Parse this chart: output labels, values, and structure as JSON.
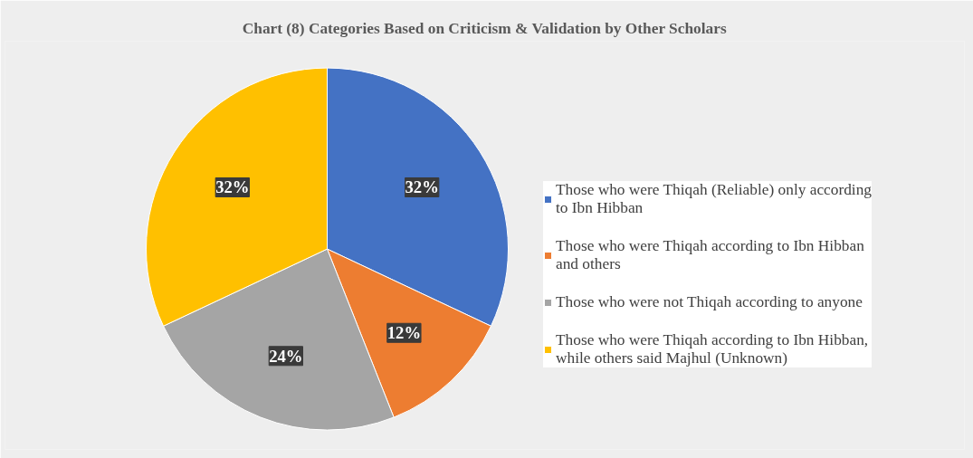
{
  "chart_data": {
    "type": "pie",
    "title": "Chart (8) Categories Based on Criticism & Validation by Other Scholars",
    "categories": [
      "Those who were Thiqah (Reliable) only according to Ibn Hibban",
      "Those who were Thiqah according to Ibn Hibban and others",
      "Those who were not Thiqah according to anyone",
      "Those who were Thiqah according to Ibn Hibban, while others said Majhul (Unknown)"
    ],
    "values": [
      32,
      12,
      24,
      32
    ],
    "colors": [
      "#4472c4",
      "#ed7d31",
      "#a5a5a5",
      "#ffc000"
    ],
    "value_labels": [
      "32%",
      "12%",
      "24%",
      "32%"
    ],
    "legend": "right"
  }
}
